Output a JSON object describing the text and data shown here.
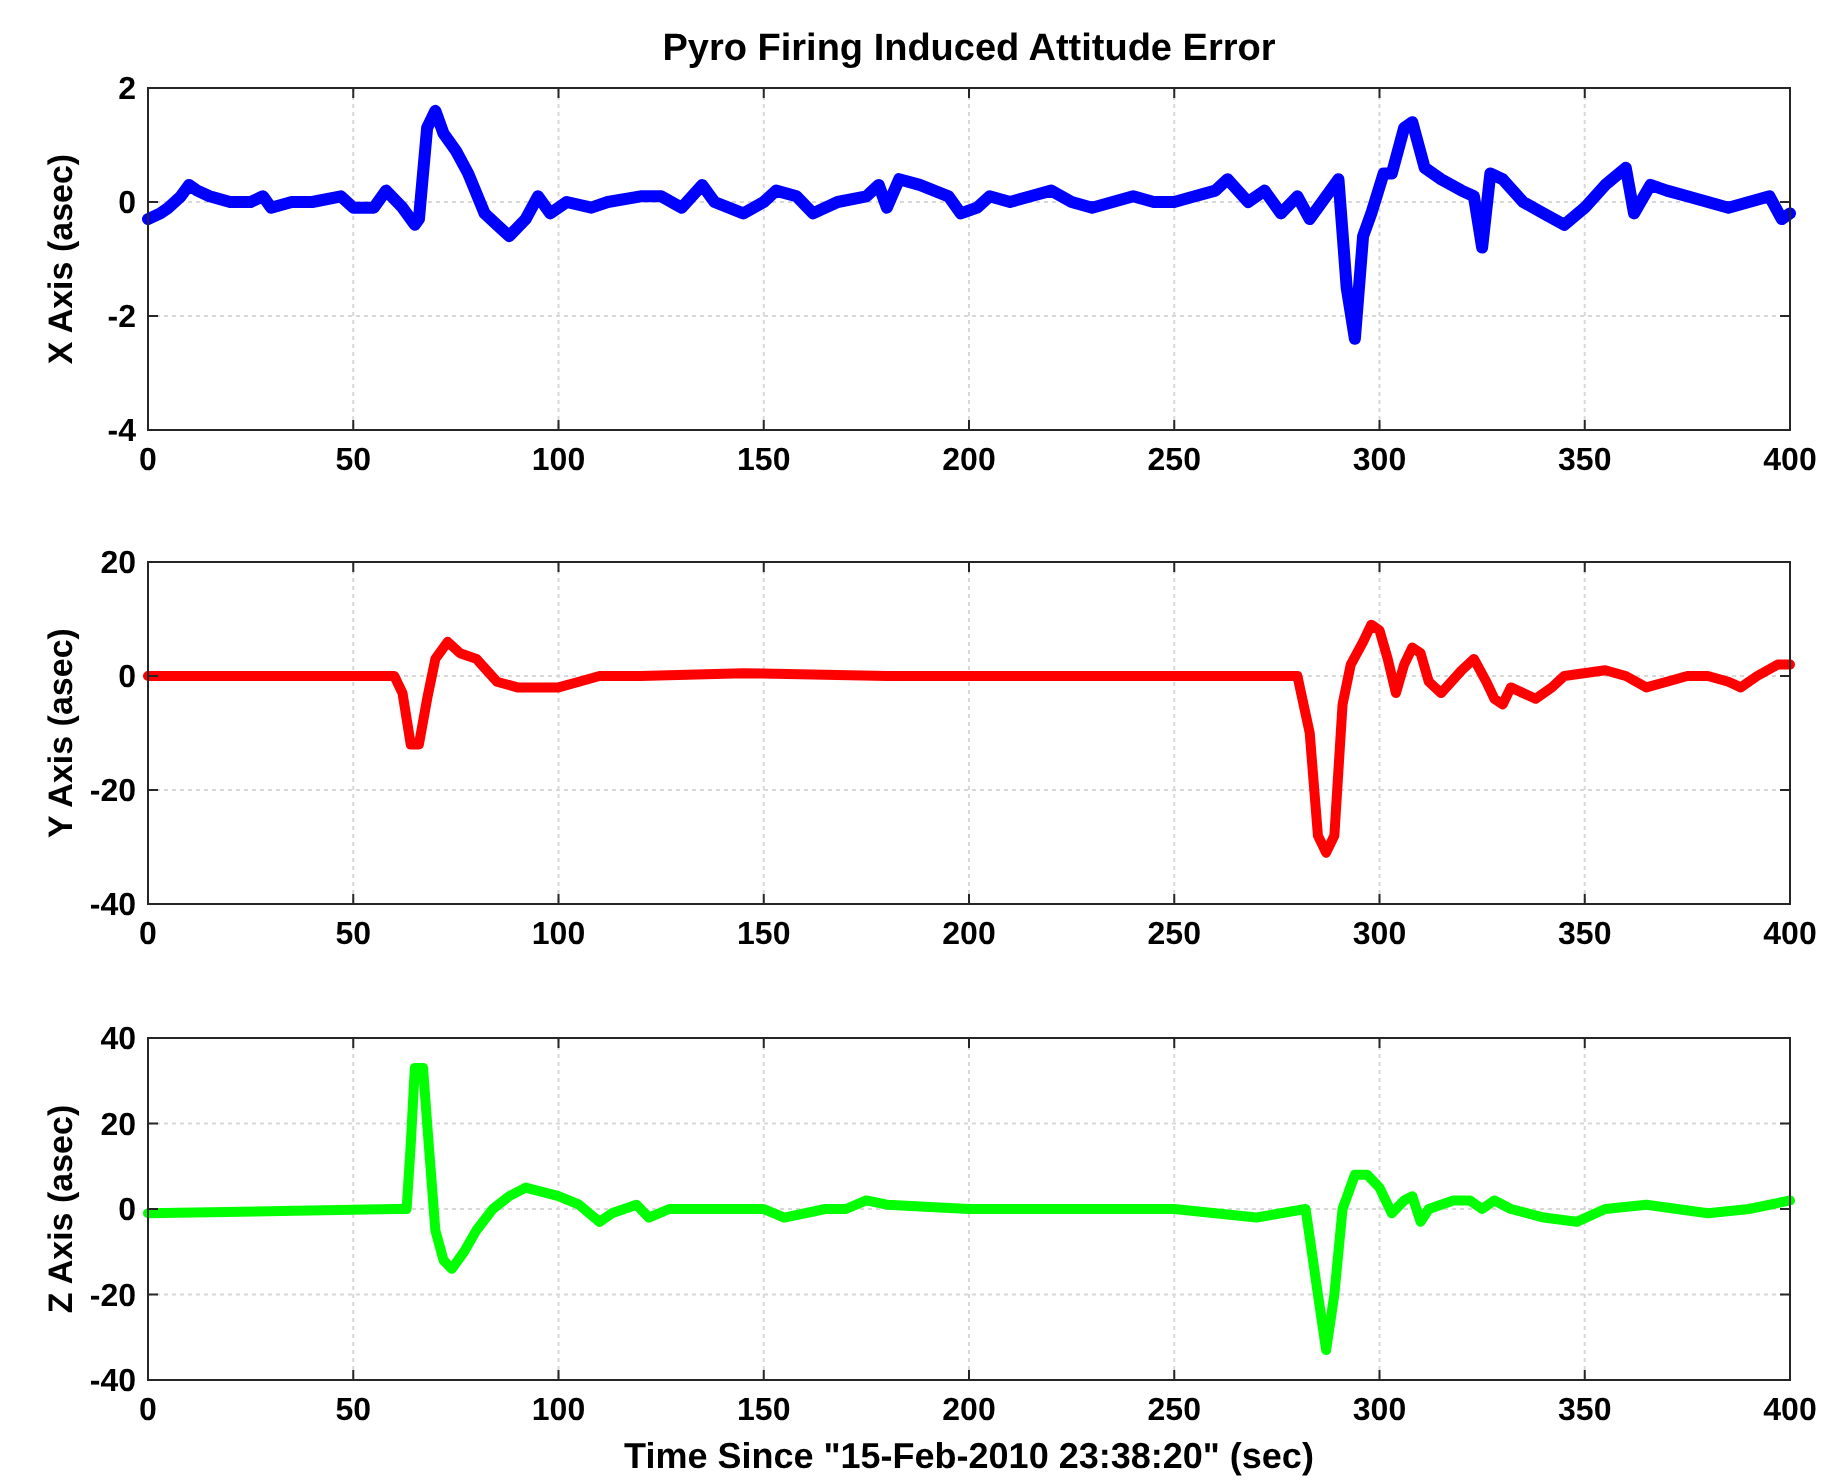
{
  "chart_data": [
    {
      "type": "line",
      "title": "Pyro Firing Induced Attitude Error",
      "ylabel": "X Axis (asec)",
      "xlim": [
        0,
        400
      ],
      "xticks": [
        0,
        50,
        100,
        150,
        200,
        250,
        300,
        350,
        400
      ],
      "ylim": [
        -4,
        2
      ],
      "yticks": [
        -4,
        -2,
        0,
        2
      ],
      "grid": true,
      "marker": "none",
      "line_style": "solid",
      "series": [
        {
          "color": "#0000ff",
          "x": [
            0,
            3,
            5,
            8,
            10,
            12,
            15,
            20,
            25,
            28,
            30,
            35,
            40,
            47,
            50,
            55,
            58,
            62,
            65,
            66,
            68,
            70,
            72,
            75,
            78,
            82,
            85,
            88,
            92,
            95,
            98,
            102,
            108,
            112,
            120,
            125,
            130,
            135,
            138,
            145,
            150,
            153,
            158,
            162,
            168,
            175,
            178,
            180,
            183,
            188,
            195,
            198,
            202,
            205,
            210,
            215,
            220,
            225,
            230,
            235,
            240,
            245,
            250,
            255,
            260,
            263,
            268,
            272,
            276,
            280,
            283,
            286,
            290,
            292,
            294,
            296,
            298,
            301,
            303,
            306,
            308,
            311,
            315,
            320,
            323,
            325,
            327,
            330,
            335,
            340,
            345,
            350,
            355,
            360,
            362,
            366,
            370,
            375,
            380,
            385,
            390,
            395,
            398,
            400
          ],
          "values": [
            -0.3,
            -0.2,
            -0.1,
            0.1,
            0.3,
            0.2,
            0.1,
            0,
            0,
            0.1,
            -0.1,
            0,
            0,
            0.1,
            -0.1,
            -0.1,
            0.2,
            -0.1,
            -0.4,
            -0.3,
            1.3,
            1.6,
            1.2,
            0.9,
            0.5,
            -0.2,
            -0.4,
            -0.6,
            -0.3,
            0.1,
            -0.2,
            0,
            -0.1,
            0,
            0.1,
            0.1,
            -0.1,
            0.3,
            0,
            -0.2,
            0,
            0.2,
            0.1,
            -0.2,
            0,
            0.1,
            0.3,
            -0.1,
            0.4,
            0.3,
            0.1,
            -0.2,
            -0.1,
            0.1,
            0,
            0.1,
            0.2,
            0,
            -0.1,
            0,
            0.1,
            0,
            0,
            0.1,
            0.2,
            0.4,
            0,
            0.2,
            -0.2,
            0.1,
            -0.3,
            0,
            0.4,
            -1.5,
            -2.4,
            -0.6,
            -0.2,
            0.5,
            0.5,
            1.3,
            1.4,
            0.6,
            0.4,
            0.2,
            0.1,
            -0.8,
            0.5,
            0.4,
            0,
            -0.2,
            -0.4,
            -0.1,
            0.3,
            0.6,
            -0.2,
            0.3,
            0.2,
            0.1,
            0,
            -0.1,
            0,
            0.1,
            -0.3,
            -0.2
          ]
        }
      ]
    },
    {
      "type": "line",
      "ylabel": "Y Axis (asec)",
      "xlim": [
        0,
        400
      ],
      "xticks": [
        0,
        50,
        100,
        150,
        200,
        250,
        300,
        350,
        400
      ],
      "ylim": [
        -40,
        20
      ],
      "yticks": [
        -40,
        -20,
        0,
        20
      ],
      "grid": true,
      "marker": "none",
      "line_style": "solid",
      "series": [
        {
          "color": "#ff0000",
          "x": [
            0,
            60,
            62,
            64,
            66,
            68,
            70,
            73,
            76,
            80,
            85,
            90,
            95,
            100,
            105,
            110,
            120,
            145,
            180,
            200,
            280,
            283,
            285,
            287,
            289,
            291,
            293,
            296,
            298,
            300,
            302,
            304,
            306,
            308,
            310,
            312,
            315,
            320,
            323,
            326,
            328,
            330,
            332,
            335,
            338,
            342,
            345,
            355,
            360,
            365,
            370,
            375,
            380,
            385,
            388,
            392,
            397,
            400
          ],
          "values": [
            0,
            0,
            -3,
            -12,
            -12,
            -4,
            3,
            6,
            4,
            3,
            -1,
            -2,
            -2,
            -2,
            -1,
            0,
            0,
            0.5,
            0,
            0,
            0,
            -10,
            -28,
            -31,
            -28,
            -5,
            2,
            6,
            9,
            8,
            3,
            -3,
            2,
            5,
            4,
            -1,
            -3,
            1,
            3,
            -1,
            -4,
            -5,
            -2,
            -3,
            -4,
            -2,
            0,
            1,
            0,
            -2,
            -1,
            0,
            0,
            -1,
            -2,
            0,
            2,
            2
          ]
        }
      ]
    },
    {
      "type": "line",
      "ylabel": "Z Axis (asec)",
      "xlabel": "Time Since \"15-Feb-2010 23:38:20\" (sec)",
      "xlim": [
        0,
        400
      ],
      "xticks": [
        0,
        50,
        100,
        150,
        200,
        250,
        300,
        350,
        400
      ],
      "ylim": [
        -40,
        40
      ],
      "yticks": [
        -40,
        -20,
        0,
        20,
        40
      ],
      "grid": true,
      "marker": "none",
      "line_style": "solid",
      "series": [
        {
          "color": "#00ff00",
          "x": [
            0,
            60,
            63,
            64,
            65,
            67,
            68,
            70,
            72,
            74,
            77,
            80,
            84,
            88,
            92,
            96,
            100,
            105,
            110,
            113,
            116,
            119,
            122,
            127,
            140,
            150,
            155,
            165,
            170,
            175,
            180,
            200,
            250,
            270,
            282,
            285,
            287,
            289,
            291,
            294,
            297,
            300,
            303,
            306,
            308,
            310,
            312,
            318,
            322,
            325,
            328,
            332,
            340,
            348,
            355,
            365,
            380,
            390,
            400
          ],
          "values": [
            -1,
            0,
            0,
            15,
            33,
            33,
            20,
            -5,
            -12,
            -14,
            -10,
            -5,
            0,
            3,
            5,
            4,
            3,
            1,
            -3,
            -1,
            0,
            1,
            -2,
            0,
            0,
            0,
            -2,
            0,
            0,
            2,
            1,
            0,
            0,
            -2,
            0,
            -20,
            -33,
            -20,
            0,
            8,
            8,
            5,
            -1,
            2,
            3,
            -3,
            0,
            2,
            2,
            0,
            2,
            0,
            -2,
            -3,
            0,
            1,
            -1,
            0,
            2
          ]
        }
      ]
    }
  ]
}
